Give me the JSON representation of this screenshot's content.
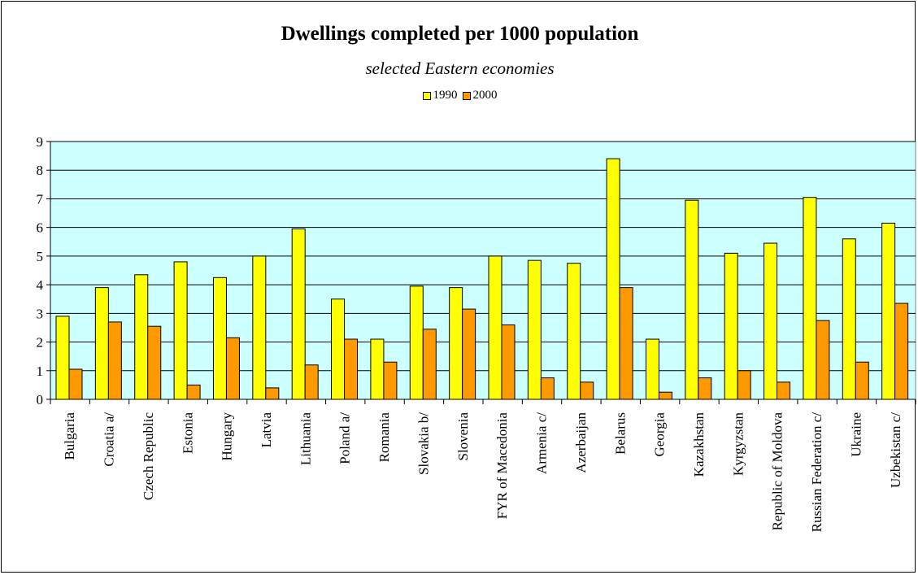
{
  "chart_data": {
    "type": "bar",
    "title": "Dwellings completed per 1000 population",
    "subtitle": "selected Eastern economies",
    "xlabel": "",
    "ylabel": "",
    "ylim": [
      0,
      9
    ],
    "yticks": [
      0,
      1,
      2,
      3,
      4,
      5,
      6,
      7,
      8,
      9
    ],
    "grid": true,
    "legend_position": "top-center",
    "categories": [
      "Bulgaria",
      "Croatia a/",
      "Czech Republic",
      "Estonia",
      "Hungary",
      "Latvia",
      "Lithuania",
      "Poland a/",
      "Romania",
      "Slovakia b/",
      "Slovenia",
      "FYR of Macedonia",
      "Armenia c/",
      "Azerbaijan",
      "Belarus",
      "Georgia",
      "Kazakhstan",
      "Kyrgyzstan",
      "Republic of Moldova",
      "Russian Federation c/",
      "Ukraine",
      "Uzbekistan c/"
    ],
    "series": [
      {
        "name": "1990",
        "color": "#ffff00",
        "values": [
          2.9,
          3.9,
          4.35,
          4.8,
          4.25,
          5.0,
          5.95,
          3.5,
          2.1,
          3.95,
          3.9,
          5.0,
          4.85,
          4.75,
          8.4,
          2.1,
          6.95,
          5.1,
          5.45,
          7.05,
          5.6,
          6.15
        ]
      },
      {
        "name": "2000",
        "color": "#ff9900",
        "values": [
          1.05,
          2.7,
          2.55,
          0.5,
          2.15,
          0.4,
          1.2,
          2.1,
          1.3,
          2.45,
          3.15,
          2.6,
          0.75,
          0.6,
          3.9,
          0.25,
          0.75,
          1.0,
          0.6,
          2.75,
          1.3,
          3.35
        ]
      }
    ],
    "plot_background": "#ccffff"
  }
}
